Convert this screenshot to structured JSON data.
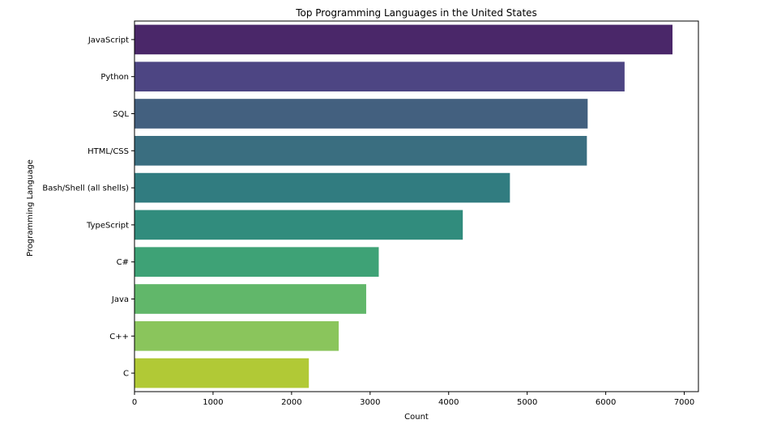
{
  "chart_data": {
    "type": "bar",
    "orientation": "horizontal",
    "title": "Top Programming Languages in the United States",
    "xlabel": "Count",
    "ylabel": "Programming Language",
    "categories": [
      "JavaScript",
      "Python",
      "SQL",
      "HTML/CSS",
      "Bash/Shell (all shells)",
      "TypeScript",
      "C#",
      "Java",
      "C++",
      "C"
    ],
    "values": [
      6850,
      6240,
      5770,
      5760,
      4780,
      4180,
      3110,
      2950,
      2600,
      2220
    ],
    "xlim": [
      0,
      7180
    ],
    "xticks": [
      0,
      1000,
      2000,
      3000,
      4000,
      5000,
      6000,
      7000
    ],
    "grid": false,
    "legend": "none",
    "bar_colors": [
      "#4a2769",
      "#4d4583",
      "#43607f",
      "#3a6e80",
      "#317c80",
      "#318c7d",
      "#3ea276",
      "#61b76a",
      "#8ac55c",
      "#b1c936"
    ]
  }
}
